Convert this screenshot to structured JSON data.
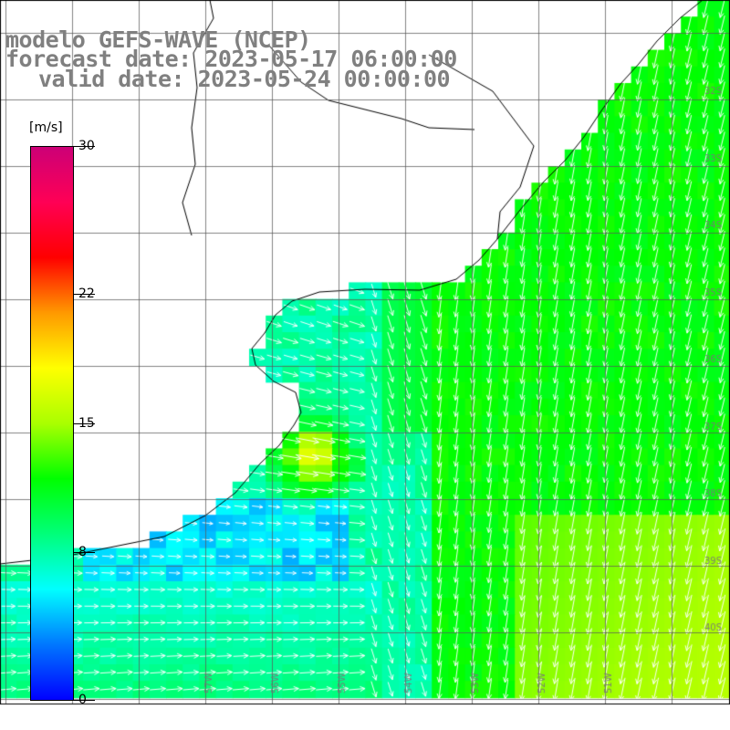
{
  "titles": {
    "line1": "modelo GEFS-WAVE (NCEP)",
    "line2": "forecast date: 2023-05-17 06:00:00",
    "line3": "valid date: 2023-05-24 00:00:00"
  },
  "colorbar": {
    "unit": "[m/s]",
    "ticks": [
      {
        "label": "30",
        "value": 30
      },
      {
        "label": "22",
        "value": 22
      },
      {
        "label": "15",
        "value": 15
      },
      {
        "label": "8",
        "value": 8
      },
      {
        "label": "0",
        "value": 0
      }
    ],
    "colors": [
      "#0000ff",
      "#0077ff",
      "#00ffff",
      "#00ff7a",
      "#00ff00",
      "#aaff00",
      "#ffff00",
      "#ff9900",
      "#ff0000",
      "#ff0055",
      "#cc0077"
    ]
  },
  "map": {
    "lat_labels": [
      "32S",
      "33S",
      "34S",
      "35S",
      "36S",
      "37S",
      "38S",
      "39S",
      "40S"
    ],
    "lon_labels": [
      "57W",
      "56W",
      "55W",
      "54W",
      "53W",
      "52W",
      "51W"
    ]
  }
}
